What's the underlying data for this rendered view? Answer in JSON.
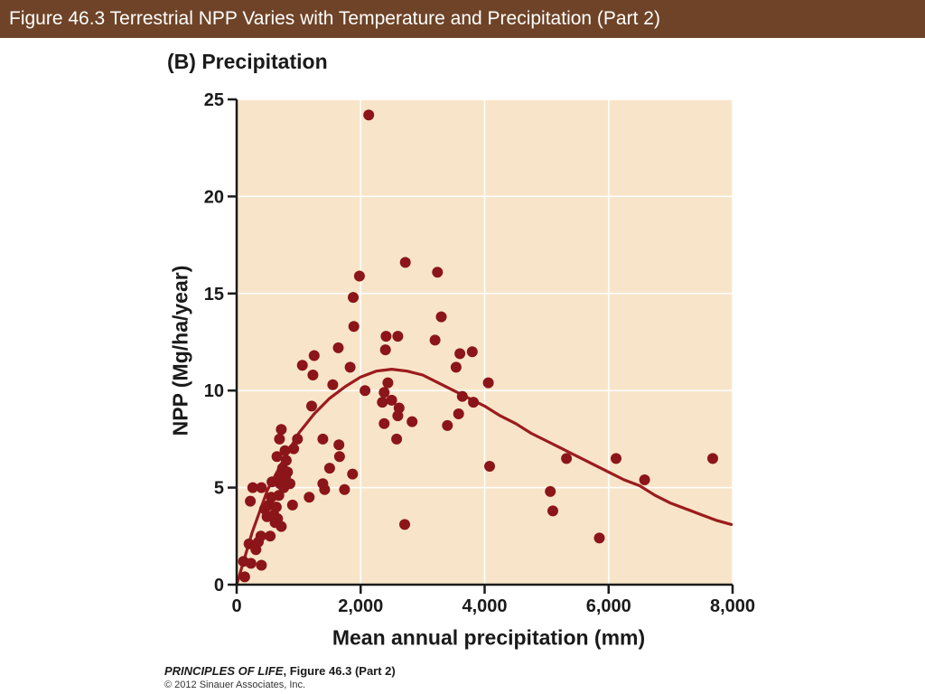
{
  "header": {
    "title": "Figure 46.3  Terrestrial NPP Varies with Temperature and Precipitation (Part 2)"
  },
  "panel_label": "(B)  Precipitation",
  "credit": {
    "book": "PRINCIPLES OF LIFE",
    "figure": ", Figure 46.3 (Part 2)",
    "copyright": "© 2012 Sinauer Associates, Inc."
  },
  "colors": {
    "header_bg": "#6e4327",
    "plot_bg": "#f8e5c9",
    "marker": "#8b1518",
    "curve": "#9b1b1e",
    "grid": "#ffffff"
  },
  "chart_data": {
    "type": "scatter",
    "title": "(B)  Precipitation",
    "xlabel": "Mean annual precipitation (mm)",
    "ylabel": "NPP (Mg/ha/year)",
    "xlim": [
      0,
      8000
    ],
    "ylim": [
      0,
      25
    ],
    "xticks": [
      0,
      2000,
      4000,
      6000,
      8000
    ],
    "xtick_labels": [
      "0",
      "2,000",
      "4,000",
      "6,000",
      "8,000"
    ],
    "yticks": [
      0,
      5,
      10,
      15,
      20,
      25
    ],
    "ytick_labels": [
      "0",
      "5",
      "10",
      "15",
      "20",
      "25"
    ],
    "grid": true,
    "series": [
      {
        "kind": "points",
        "points": [
          [
            130,
            0.4
          ],
          [
            110,
            1.2
          ],
          [
            230,
            1.1
          ],
          [
            200,
            2.1
          ],
          [
            310,
            1.8
          ],
          [
            350,
            2.2
          ],
          [
            390,
            2.5
          ],
          [
            400,
            1.0
          ],
          [
            220,
            4.3
          ],
          [
            260,
            5.0
          ],
          [
            400,
            5.0
          ],
          [
            450,
            3.9
          ],
          [
            490,
            3.5
          ],
          [
            520,
            4.1
          ],
          [
            560,
            4.5
          ],
          [
            570,
            5.3
          ],
          [
            540,
            2.5
          ],
          [
            600,
            3.6
          ],
          [
            620,
            3.2
          ],
          [
            640,
            4.0
          ],
          [
            660,
            3.4
          ],
          [
            680,
            4.6
          ],
          [
            700,
            5.2
          ],
          [
            720,
            3.0
          ],
          [
            650,
            6.6
          ],
          [
            690,
            7.5
          ],
          [
            700,
            5.6
          ],
          [
            720,
            8.0
          ],
          [
            740,
            6.0
          ],
          [
            760,
            5.0
          ],
          [
            780,
            6.9
          ],
          [
            790,
            5.6
          ],
          [
            800,
            6.4
          ],
          [
            820,
            5.8
          ],
          [
            860,
            5.2
          ],
          [
            900,
            4.1
          ],
          [
            920,
            7.0
          ],
          [
            980,
            7.5
          ],
          [
            1060,
            11.3
          ],
          [
            1170,
            4.5
          ],
          [
            1210,
            9.2
          ],
          [
            1230,
            10.8
          ],
          [
            1250,
            11.8
          ],
          [
            1390,
            7.5
          ],
          [
            1390,
            5.2
          ],
          [
            1420,
            4.9
          ],
          [
            1500,
            6.0
          ],
          [
            1550,
            10.3
          ],
          [
            1640,
            12.2
          ],
          [
            1650,
            7.2
          ],
          [
            1660,
            6.6
          ],
          [
            1740,
            4.9
          ],
          [
            1830,
            11.2
          ],
          [
            1870,
            5.7
          ],
          [
            1880,
            14.8
          ],
          [
            1890,
            13.3
          ],
          [
            1980,
            15.9
          ],
          [
            2070,
            10.0
          ],
          [
            2130,
            24.2
          ],
          [
            2350,
            9.4
          ],
          [
            2380,
            8.3
          ],
          [
            2380,
            9.9
          ],
          [
            2400,
            12.1
          ],
          [
            2410,
            12.8
          ],
          [
            2440,
            10.4
          ],
          [
            2500,
            9.5
          ],
          [
            2580,
            7.5
          ],
          [
            2600,
            12.8
          ],
          [
            2600,
            8.7
          ],
          [
            2620,
            9.1
          ],
          [
            2710,
            3.1
          ],
          [
            2720,
            16.6
          ],
          [
            2830,
            8.4
          ],
          [
            3200,
            12.6
          ],
          [
            3240,
            16.1
          ],
          [
            3300,
            13.8
          ],
          [
            3400,
            8.2
          ],
          [
            3540,
            11.2
          ],
          [
            3580,
            8.8
          ],
          [
            3600,
            11.9
          ],
          [
            3640,
            9.7
          ],
          [
            3800,
            12.0
          ],
          [
            3820,
            9.4
          ],
          [
            4060,
            10.4
          ],
          [
            4080,
            6.1
          ],
          [
            5060,
            4.8
          ],
          [
            5100,
            3.8
          ],
          [
            5320,
            6.5
          ],
          [
            5850,
            2.4
          ],
          [
            6120,
            6.5
          ],
          [
            6580,
            5.4
          ],
          [
            7680,
            6.5
          ]
        ]
      },
      {
        "kind": "curve",
        "points": [
          [
            0,
            0
          ],
          [
            250,
            2.7
          ],
          [
            500,
            4.9
          ],
          [
            750,
            6.4
          ],
          [
            1000,
            7.8
          ],
          [
            1250,
            8.8
          ],
          [
            1500,
            9.6
          ],
          [
            1750,
            10.2
          ],
          [
            2000,
            10.7
          ],
          [
            2250,
            11.0
          ],
          [
            2500,
            11.1
          ],
          [
            2750,
            11.0
          ],
          [
            3000,
            10.8
          ],
          [
            3250,
            10.4
          ],
          [
            3500,
            10.0
          ],
          [
            3750,
            9.6
          ],
          [
            4000,
            9.2
          ],
          [
            4250,
            8.7
          ],
          [
            4500,
            8.3
          ],
          [
            4750,
            7.8
          ],
          [
            5000,
            7.4
          ],
          [
            5250,
            7.0
          ],
          [
            5500,
            6.6
          ],
          [
            5750,
            6.2
          ],
          [
            6000,
            5.8
          ],
          [
            6250,
            5.4
          ],
          [
            6500,
            5.1
          ],
          [
            6750,
            4.6
          ],
          [
            7000,
            4.2
          ],
          [
            7250,
            3.9
          ],
          [
            7500,
            3.6
          ],
          [
            7750,
            3.3
          ],
          [
            7980,
            3.1
          ]
        ]
      }
    ]
  }
}
